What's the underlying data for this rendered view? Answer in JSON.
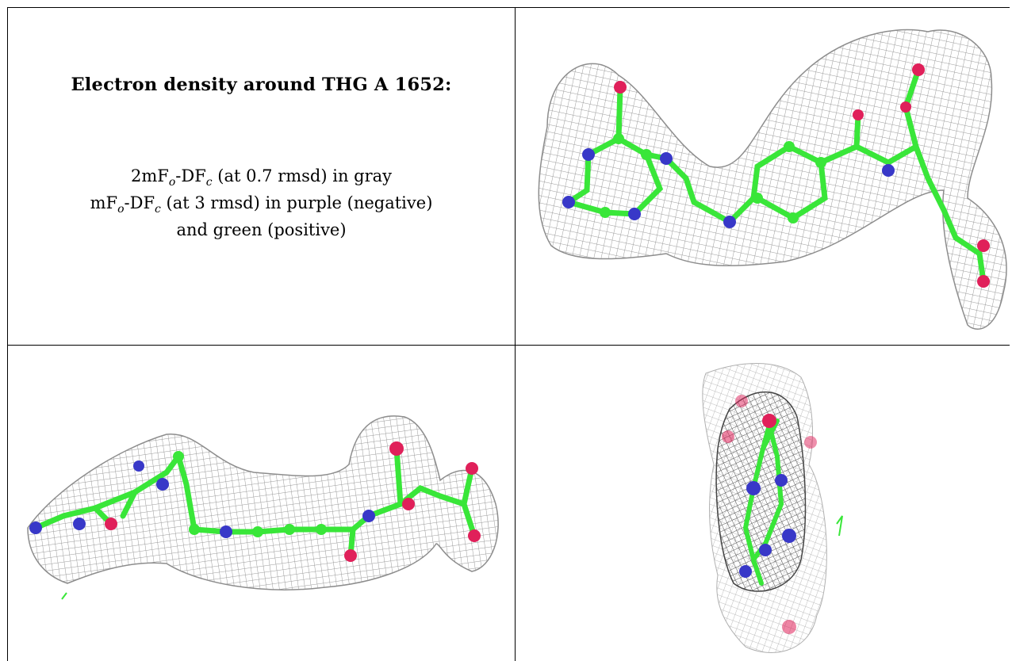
{
  "caption": {
    "heading": "Electron density around THG A 1652:",
    "lines": [
      {
        "prefix": "2mF",
        "sub1": "o",
        "mid": "-DF",
        "sub2": "c",
        "suffix": " (at 0.7 rmsd) in gray"
      },
      {
        "prefix": "mF",
        "sub1": "o",
        "mid": "-DF",
        "sub2": "c",
        "suffix": " (at 3 rmsd) in purple (negative)"
      },
      {
        "text": "and green (positive)"
      }
    ]
  },
  "panels": [
    {
      "id": "view-1",
      "description_icon": "molecule-mesh-icon"
    },
    {
      "id": "view-2",
      "description_icon": "molecule-mesh-icon"
    },
    {
      "id": "view-3",
      "description_icon": "molecule-mesh-icon"
    }
  ],
  "colors": {
    "carbon": "#39e639",
    "nitrogen": "#3838c8",
    "oxygen": "#e0205a",
    "mesh": "#9a9a9a",
    "mesh_dark": "#555555",
    "border": "#000000"
  }
}
